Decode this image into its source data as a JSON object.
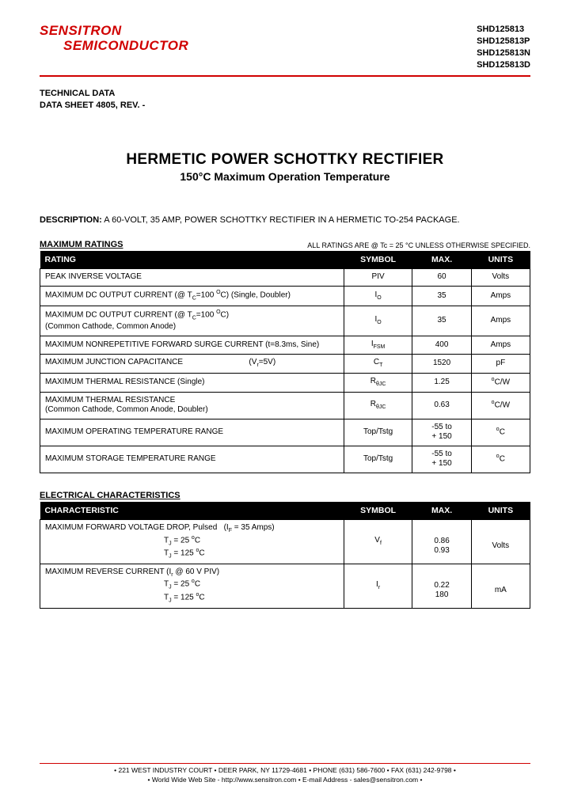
{
  "logo": {
    "line1": "SENSITRON",
    "line2": "SEMICONDUCTOR"
  },
  "part_numbers": [
    "SHD125813",
    "SHD125813P",
    "SHD125813N",
    "SHD125813D"
  ],
  "tech_data": {
    "line1": "TECHNICAL DATA",
    "line2": "DATA SHEET 4805, REV. -"
  },
  "title": "HERMETIC POWER SCHOTTKY RECTIFIER",
  "subtitle": "150°C Maximum Operation Temperature",
  "description_label": "DESCRIPTION:",
  "description_text": " A 60-VOLT, 35 AMP, POWER SCHOTTKY RECTIFIER IN A HERMETIC TO-254 PACKAGE.",
  "ratings_header": "MAXIMUM RATINGS",
  "ratings_note": "ALL RATINGS ARE @ Tc = 25 °C UNLESS OTHERWISE SPECIFIED.",
  "table1_headers": {
    "rating": "RATING",
    "symbol": "SYMBOL",
    "max": "MAX.",
    "units": "UNITS"
  },
  "ratings_rows": [
    {
      "rating": "PEAK INVERSE VOLTAGE",
      "symbol": "PIV",
      "max": "60",
      "units": "Volts"
    },
    {
      "rating": "MAXIMUM DC OUTPUT CURRENT (@ T<span class='sub'>C</span>=100 <span class='sup'>O</span>C) (Single, Doubler)",
      "symbol": "I<span class='sub'>O</span>",
      "max": "35",
      "units": "Amps"
    },
    {
      "rating": "MAXIMUM DC OUTPUT CURRENT (@ T<span class='sub'>C</span>=100 <span class='sup'>O</span>C)<br>(Common Cathode, Common Anode)",
      "symbol": "I<span class='sub'>O</span>",
      "max": "35",
      "units": "Amps"
    },
    {
      "rating": "MAXIMUM NONREPETITIVE FORWARD SURGE CURRENT (t=8.3ms, Sine)",
      "symbol": "I<span class='sub'>FSM</span>",
      "max": "400",
      "units": "Amps"
    },
    {
      "rating": "MAXIMUM JUNCTION CAPACITANCE&nbsp;&nbsp;&nbsp;&nbsp;&nbsp;&nbsp;&nbsp;&nbsp;&nbsp;&nbsp;&nbsp;&nbsp;&nbsp;&nbsp;&nbsp;&nbsp;&nbsp;&nbsp;&nbsp;&nbsp;&nbsp;&nbsp;&nbsp;&nbsp;&nbsp;&nbsp;&nbsp;&nbsp;&nbsp;&nbsp;(V<span class='sub'>r</span>=5V)",
      "symbol": "C<span class='sub'>T</span>",
      "max": "1520",
      "units": "pF"
    },
    {
      "rating": "MAXIMUM THERMAL RESISTANCE (Single)",
      "symbol": "R<span class='sub'>θJC</span>",
      "max": "1.25",
      "units": "<span class='sup'>o</span>C/W"
    },
    {
      "rating": "MAXIMUM THERMAL RESISTANCE<br>(Common Cathode, Common Anode, Doubler)",
      "symbol": "R<span class='sub'>θJC</span>",
      "max": "0.63",
      "units": "<span class='sup'>o</span>C/W"
    },
    {
      "rating": "MAXIMUM OPERATING TEMPERATURE RANGE",
      "symbol": "Top/Tstg",
      "max": "-55 to<br>+ 150",
      "units": "<span class='sup'>o</span>C"
    },
    {
      "rating": "MAXIMUM STORAGE TEMPERATURE RANGE",
      "symbol": "Top/Tstg",
      "max": "-55 to<br>+ 150",
      "units": "<span class='sup'>o</span>C"
    }
  ],
  "elec_header": "ELECTRICAL CHARACTERISTICS",
  "table2_headers": {
    "char": "CHARACTERISTIC",
    "symbol": "SYMBOL",
    "max": "MAX.",
    "units": "UNITS"
  },
  "elec_rows": [
    {
      "char": "MAXIMUM FORWARD VOLTAGE DROP, Pulsed&nbsp;&nbsp;&nbsp;(I<span class='sub'>F</span> = 35 Amps)<br><span class='indent'>T<span class='sub'>J</span> = 25 <span class='sup'>o</span>C</span><span class='indent'>T<span class='sub'>J</span> = 125 <span class='sup'>o</span>C</span>",
      "symbol": "V<span class='sub'>f</span>",
      "max": "<br>0.86<br>0.93",
      "units": "<br>Volts"
    },
    {
      "char": "MAXIMUM REVERSE CURRENT (I<span class='sub'>r</span> @ 60 V PIV)<br><span class='indent'>T<span class='sub'>J</span> = 25 <span class='sup'>o</span>C</span><span class='indent'>T<span class='sub'>J</span> = 125 <span class='sup'>o</span>C</span>",
      "symbol": "I<span class='sub'>r</span>",
      "max": "<br>0.22<br>180",
      "units": "<br>mA"
    }
  ],
  "footer": {
    "line1": "• 221 WEST INDUSTRY COURT • DEER PARK, NY 11729-4681 • PHONE (631) 586-7600 • FAX (631) 242-9798 •",
    "line2": "• World Wide Web Site - http://www.sensitron.com • E-mail Address - sales@sensitron.com •"
  },
  "colors": {
    "brand": "#d00000",
    "header_bg": "#000000",
    "header_fg": "#ffffff",
    "text": "#000000"
  }
}
